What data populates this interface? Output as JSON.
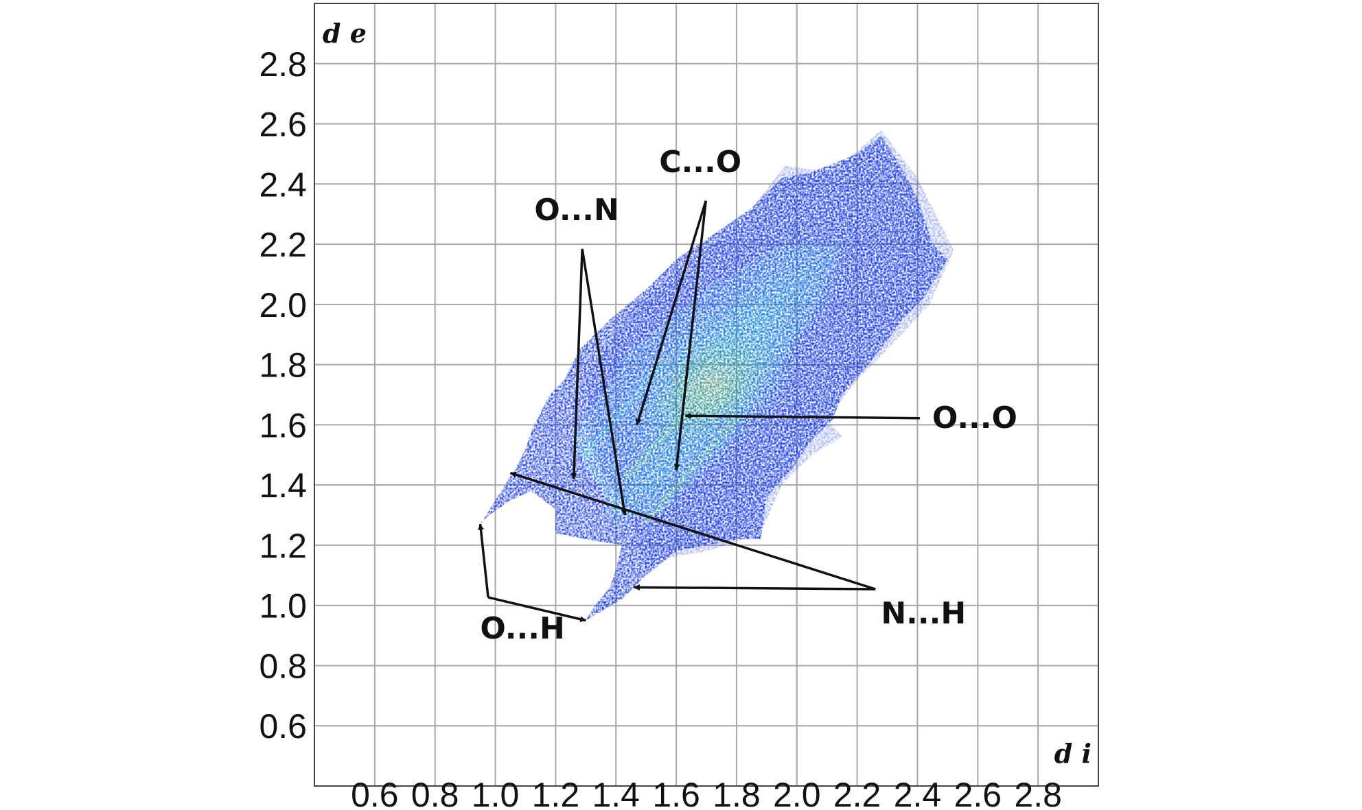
{
  "chart_data": {
    "type": "heatmap",
    "xlabel": "d i",
    "ylabel": "d e",
    "x_ticks": [
      "0.6",
      "0.8",
      "1.0",
      "1.2",
      "1.4",
      "1.6",
      "1.8",
      "2.0",
      "2.2",
      "2.4",
      "2.6",
      "2.8"
    ],
    "y_ticks": [
      "0.6",
      "0.8",
      "1.0",
      "1.2",
      "1.4",
      "1.6",
      "1.8",
      "2.0",
      "2.2",
      "2.4",
      "2.6",
      "2.8"
    ],
    "xlim": [
      0.4,
      3.0
    ],
    "ylim": [
      0.4,
      3.0
    ],
    "grid": true,
    "colors": {
      "low": "#1d3fe6",
      "mid": "#19b6d8",
      "high": "#3fe05a",
      "peak": "#b4e63a",
      "grid": "#a8a8a8",
      "frame": "#444444"
    },
    "annotations": [
      {
        "label": "C...O",
        "text_pos": [
          1.68,
          2.44
        ],
        "targets": [
          [
            1.47,
            1.6
          ],
          [
            1.6,
            1.45
          ]
        ]
      },
      {
        "label": "O...N",
        "text_pos": [
          1.27,
          2.28
        ],
        "targets": [
          [
            1.26,
            1.42
          ],
          [
            1.43,
            1.3
          ]
        ]
      },
      {
        "label": "O...O",
        "text_pos": [
          2.59,
          1.59
        ],
        "targets": [
          [
            1.63,
            1.63
          ]
        ]
      },
      {
        "label": "N...H",
        "text_pos": [
          2.42,
          0.94
        ],
        "targets": [
          [
            1.05,
            1.44
          ],
          [
            1.46,
            1.06
          ]
        ]
      },
      {
        "label": "O...H",
        "text_pos": [
          1.09,
          0.89
        ],
        "targets": [
          [
            0.95,
            1.27
          ],
          [
            1.3,
            0.95
          ]
        ]
      }
    ]
  }
}
